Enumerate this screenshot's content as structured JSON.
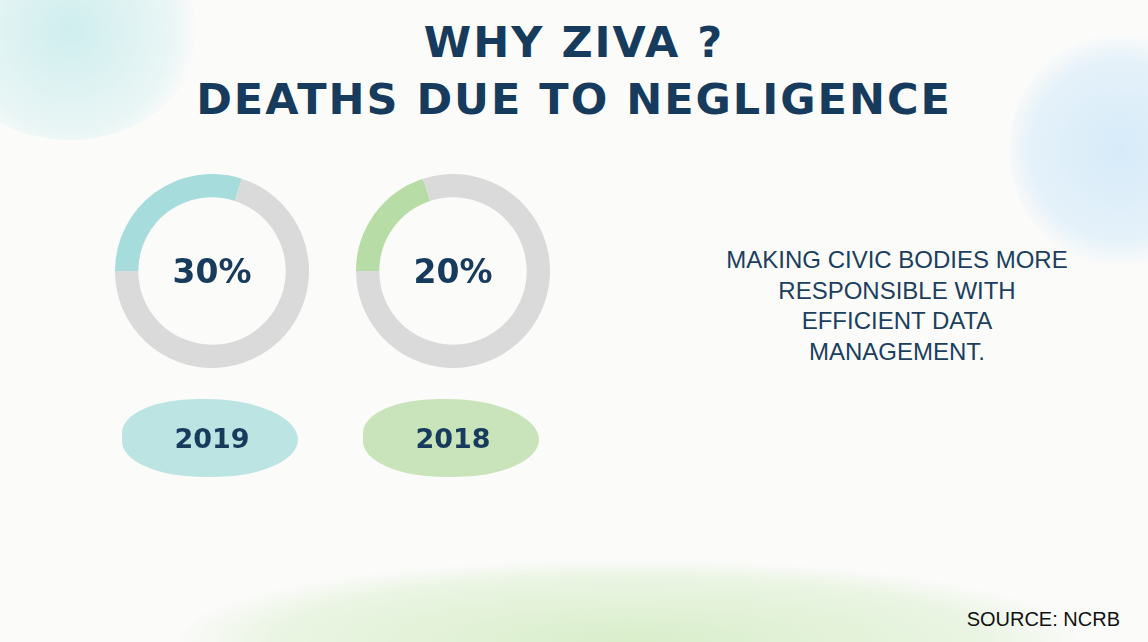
{
  "title": "WHY ZIVA ?",
  "subtitle": "DEATHS DUE TO NEGLIGENCE",
  "chart_data": [
    {
      "type": "doughnut",
      "categories": [
        "2019"
      ],
      "values": [
        30
      ],
      "value_labels": [
        "30%"
      ],
      "ylim": [
        0,
        100
      ],
      "color": "#a6dcdb",
      "data_labels": true
    },
    {
      "type": "doughnut",
      "categories": [
        "2018"
      ],
      "values": [
        20
      ],
      "value_labels": [
        "20%"
      ],
      "ylim": [
        0,
        100
      ],
      "color": "#b8dca6",
      "data_labels": true
    }
  ],
  "annotation": [
    "MAKING CIVIC BODIES MORE",
    "RESPONSIBLE WITH",
    "EFFICIENT DATA",
    "MANAGEMENT."
  ],
  "source": "SOURCE: NCRB"
}
